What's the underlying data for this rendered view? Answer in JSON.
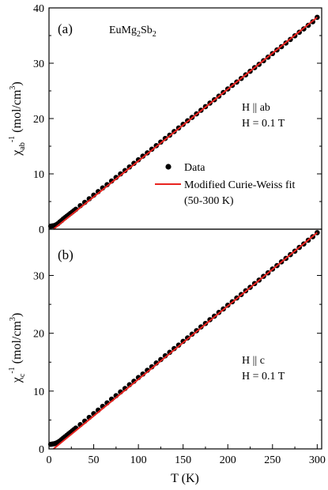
{
  "chart_data": [
    {
      "type": "scatter",
      "panel_label": "(a)",
      "compound": {
        "prefix": "EuMg",
        "sub1": "2",
        "mid": "Sb",
        "sub2": "2"
      },
      "annotations": [
        "H || ab",
        "H = 0.1 T"
      ],
      "ylabel": {
        "base": "χ",
        "sub": "ab",
        "sup": "-1",
        "unit_pre": " (mol/cm",
        "unit_sup": "3",
        "unit_post": ")"
      },
      "xlim": [
        0,
        305
      ],
      "ylim": [
        0,
        40
      ],
      "yticks": [
        0,
        10,
        20,
        30,
        40
      ],
      "series": [
        {
          "name": "Data",
          "kind": "points",
          "color": "#000000",
          "x": [
            2,
            4,
            6,
            8,
            10,
            12,
            14,
            16,
            18,
            20,
            22,
            24,
            26,
            28,
            30,
            35,
            40,
            45,
            50,
            55,
            60,
            65,
            70,
            75,
            80,
            85,
            90,
            95,
            100,
            105,
            110,
            115,
            120,
            125,
            130,
            135,
            140,
            145,
            150,
            155,
            160,
            165,
            170,
            175,
            180,
            185,
            190,
            195,
            200,
            205,
            210,
            215,
            220,
            225,
            230,
            235,
            240,
            245,
            250,
            255,
            260,
            265,
            270,
            275,
            280,
            285,
            290,
            295,
            300
          ],
          "y": [
            0.55,
            0.6,
            0.65,
            0.8,
            1.0,
            1.3,
            1.55,
            1.85,
            2.1,
            2.35,
            2.6,
            2.85,
            3.1,
            3.35,
            3.6,
            4.25,
            4.85,
            5.5,
            6.15,
            6.8,
            7.45,
            8.05,
            8.7,
            9.35,
            10.0,
            10.6,
            11.25,
            11.9,
            12.55,
            13.2,
            13.8,
            14.45,
            15.1,
            15.75,
            16.4,
            17.0,
            17.65,
            18.3,
            18.95,
            19.6,
            20.2,
            20.85,
            21.5,
            22.15,
            22.8,
            23.4,
            24.05,
            24.7,
            25.35,
            26.0,
            26.6,
            27.25,
            27.9,
            28.55,
            29.2,
            29.8,
            30.45,
            31.1,
            31.75,
            32.4,
            33.0,
            33.65,
            34.3,
            34.95,
            35.6,
            36.2,
            36.85,
            37.5,
            38.3
          ]
        },
        {
          "name": "Modified Curie-Weiss fit",
          "kind": "line",
          "color": "#e8231f",
          "x": [
            5,
            300
          ],
          "y": [
            0.0,
            38.3
          ]
        }
      ]
    },
    {
      "type": "scatter",
      "panel_label": "(b)",
      "annotations": [
        "H || c",
        "H = 0.1 T"
      ],
      "ylabel": {
        "base": "χ",
        "sub": "c",
        "sup": "-1",
        "unit_pre": " (mol/cm",
        "unit_sup": "3",
        "unit_post": ")"
      },
      "xlabel": "T (K)",
      "xlim": [
        0,
        305
      ],
      "ylim": [
        0,
        38
      ],
      "xticks": [
        0,
        50,
        100,
        150,
        200,
        250,
        300
      ],
      "yticks": [
        0,
        10,
        20,
        30
      ],
      "series": [
        {
          "name": "Data",
          "kind": "points",
          "color": "#000000",
          "x": [
            2,
            4,
            6,
            8,
            10,
            12,
            14,
            16,
            18,
            20,
            22,
            24,
            26,
            28,
            30,
            35,
            40,
            45,
            50,
            55,
            60,
            65,
            70,
            75,
            80,
            85,
            90,
            95,
            100,
            105,
            110,
            115,
            120,
            125,
            130,
            135,
            140,
            145,
            150,
            155,
            160,
            165,
            170,
            175,
            180,
            185,
            190,
            195,
            200,
            205,
            210,
            215,
            220,
            225,
            230,
            235,
            240,
            245,
            250,
            255,
            260,
            265,
            270,
            275,
            280,
            285,
            290,
            295,
            300
          ],
          "y": [
            0.8,
            0.85,
            0.9,
            1.0,
            1.15,
            1.35,
            1.6,
            1.85,
            2.1,
            2.35,
            2.6,
            2.85,
            3.1,
            3.35,
            3.6,
            4.2,
            4.8,
            5.45,
            6.1,
            6.7,
            7.35,
            7.95,
            8.6,
            9.2,
            9.85,
            10.45,
            11.1,
            11.7,
            12.35,
            12.95,
            13.6,
            14.2,
            14.85,
            15.45,
            16.1,
            16.7,
            17.35,
            17.95,
            18.6,
            19.2,
            19.85,
            20.45,
            21.1,
            21.7,
            22.35,
            22.95,
            23.6,
            24.2,
            24.85,
            25.45,
            26.1,
            26.7,
            27.35,
            27.95,
            28.6,
            29.2,
            29.85,
            30.45,
            31.1,
            31.7,
            32.35,
            32.95,
            33.6,
            34.2,
            34.85,
            35.45,
            36.1,
            36.7,
            37.4
          ]
        },
        {
          "name": "Modified Curie-Weiss fit",
          "kind": "line",
          "color": "#e8231f",
          "x": [
            5,
            300
          ],
          "y": [
            0.0,
            37.4
          ]
        }
      ]
    }
  ],
  "legend": {
    "items": [
      {
        "label": "Data",
        "kind": "point",
        "color": "#000000"
      },
      {
        "label": "Modified Curie-Weiss fit",
        "kind": "line",
        "color": "#e8231f"
      }
    ],
    "extra_line": "(50-300 K)"
  }
}
